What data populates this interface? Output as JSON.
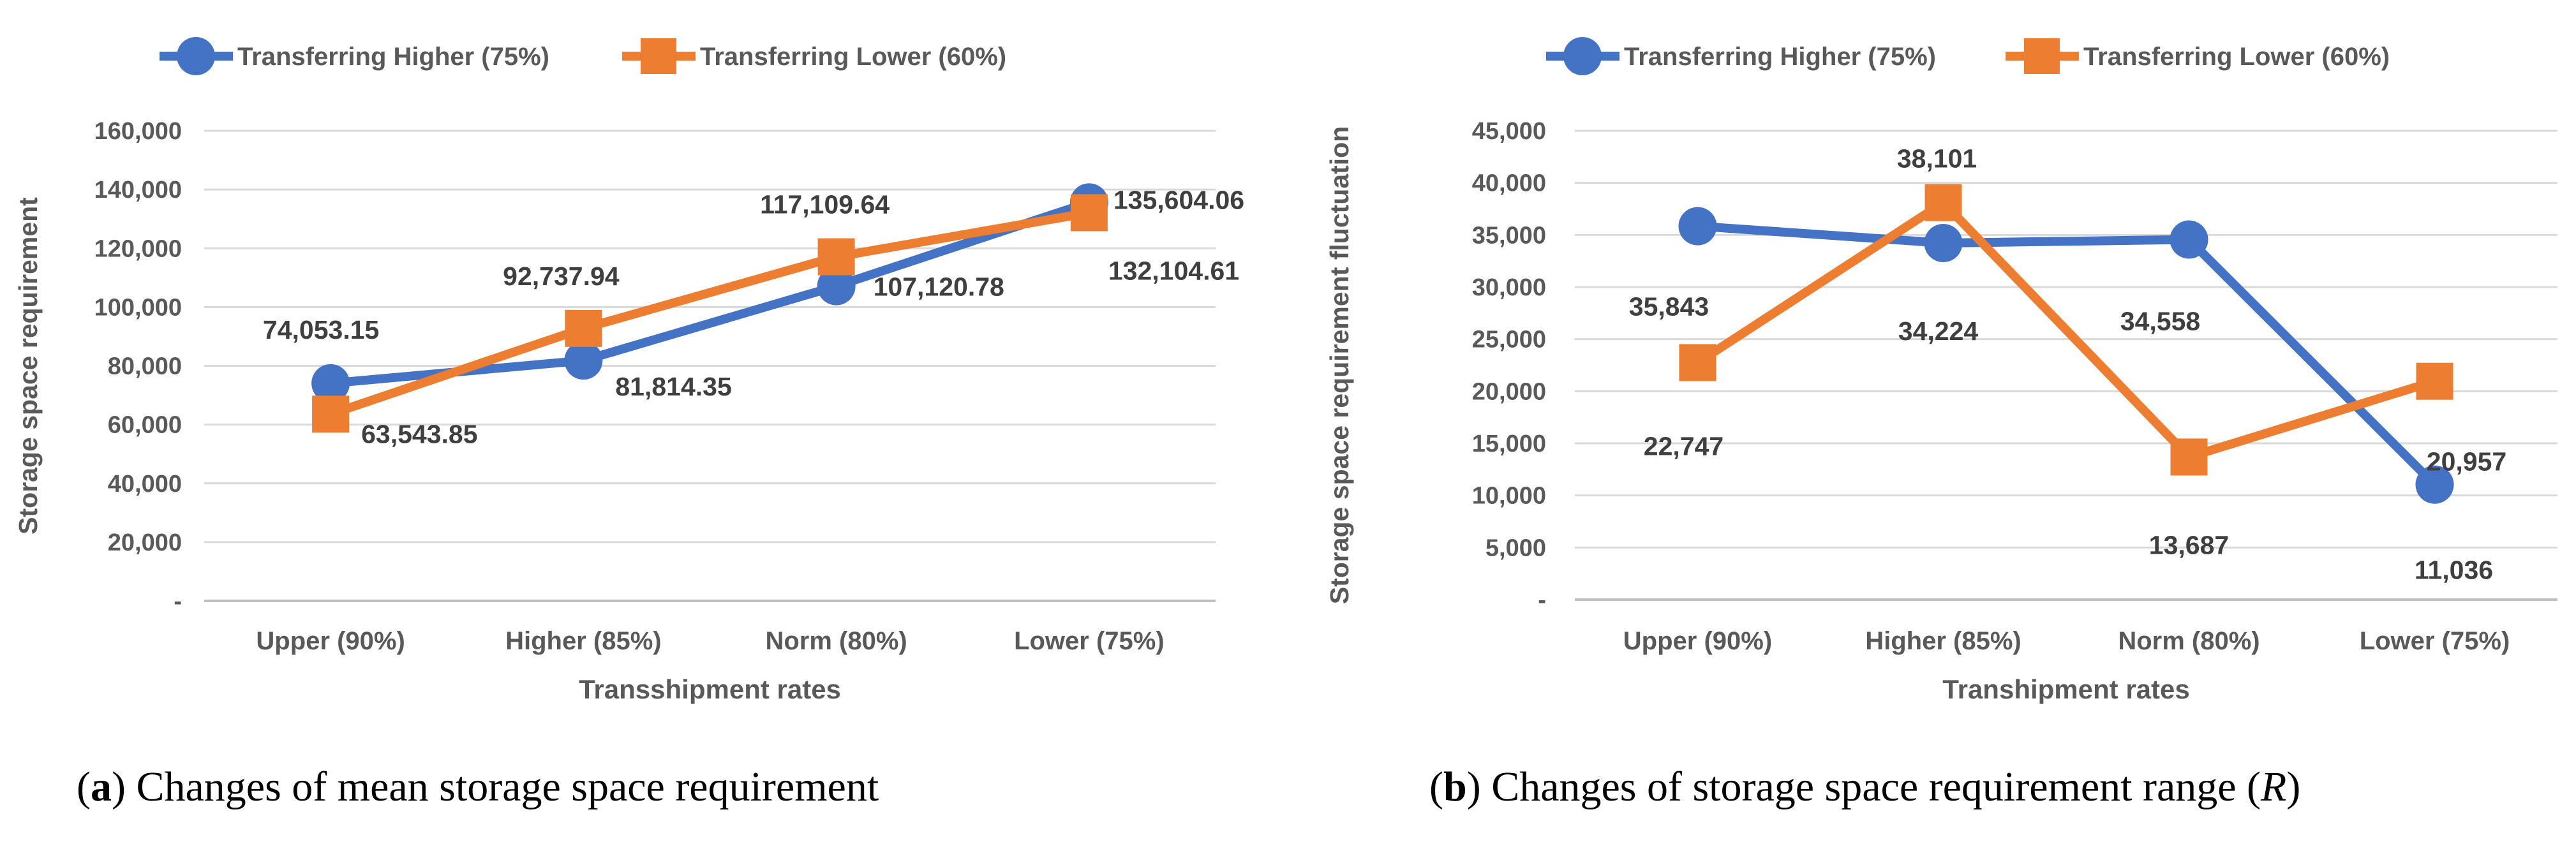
{
  "figure_name": "storage-space-requirement-sensitivity-figure",
  "chart_data": [
    {
      "type": "line",
      "title": "",
      "categories": [
        "Upper (90%)",
        "Higher (85%)",
        "Norm (80%)",
        "Lower (75%)"
      ],
      "series": [
        {
          "name": "Transferring Higher (75%)",
          "color": "#4472C4",
          "marker": "circle",
          "values": [
            74053.15,
            81814.35,
            107120.78,
            135604.06
          ],
          "labels": [
            "74,053.15",
            "81,814.35",
            "107,120.78",
            "135,604.06"
          ]
        },
        {
          "name": "Transferring Lower (60%)",
          "color": "#ED7D31",
          "marker": "square",
          "values": [
            63543.85,
            92737.94,
            117109.64,
            132104.61
          ],
          "labels": [
            "63,543.85",
            "92,737.94",
            "117,109.64",
            "132,104.61"
          ]
        }
      ],
      "xlabel": "Transshipment rates",
      "ylabel": "Storage space requirement",
      "ylim": [
        0,
        160000
      ],
      "ytick_step": 20000,
      "ytick_labels": [
        "-",
        "20,000",
        "40,000",
        "60,000",
        "80,000",
        "100,000",
        "120,000",
        "140,000",
        "160,000"
      ],
      "grid": true,
      "legend_position": "top"
    },
    {
      "type": "line",
      "title": "",
      "categories": [
        "Upper (90%)",
        "Higher (85%)",
        "Norm (80%)",
        "Lower (75%)"
      ],
      "series": [
        {
          "name": "Transferring Higher (75%)",
          "color": "#4472C4",
          "marker": "circle",
          "values": [
            35843,
            34224,
            34558,
            11036
          ],
          "labels": [
            "35,843",
            "34,224",
            "34,558",
            "11,036"
          ]
        },
        {
          "name": "Transferring Lower (60%)",
          "color": "#ED7D31",
          "marker": "square",
          "values": [
            22747,
            38101,
            13687,
            20957
          ],
          "labels": [
            "22,747",
            "38,101",
            "13,687",
            "20,957"
          ]
        }
      ],
      "xlabel": "Transhipment rates",
      "ylabel": "Storage space requirement fluctuation",
      "ylim": [
        0,
        45000
      ],
      "ytick_step": 5000,
      "ytick_labels": [
        "-",
        "5,000",
        "10,000",
        "15,000",
        "20,000",
        "25,000",
        "30,000",
        "35,000",
        "40,000",
        "45,000"
      ],
      "grid": true,
      "legend_position": "top"
    }
  ],
  "captions": [
    {
      "letter": "a",
      "text": "Changes of mean storage space requirement",
      "italic": "",
      "post": ""
    },
    {
      "letter": "b",
      "text": "Changes of storage space requirement range (",
      "italic": "R",
      "post": ")"
    }
  ],
  "colors": {
    "series_blue": "#4472C4",
    "series_orange": "#ED7D31",
    "tick_text": "#595959",
    "data_label_text": "#3F3F3F",
    "gridline": "#D9D9D9",
    "axis_line": "#BFBFBF"
  }
}
